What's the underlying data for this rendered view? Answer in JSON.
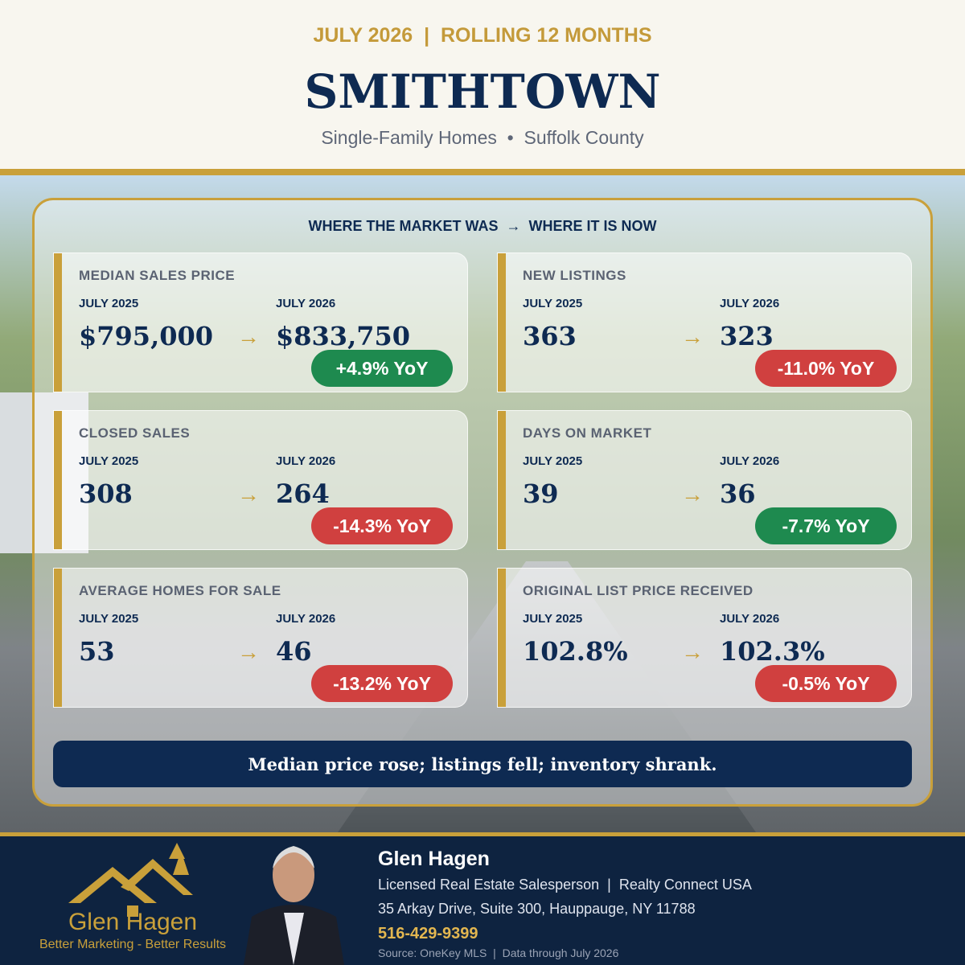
{
  "header": {
    "kicker": "JULY 2026  |  ROLLING 12 MONTHS",
    "title": "SMITHTOWN",
    "subtitle": "Single-Family Homes  •  Suffolk County"
  },
  "section_title": "WHERE THE MARKET WAS  →  WHERE IT IS NOW",
  "arrow": "→",
  "cards": [
    {
      "label": "MEDIAN SALES PRICE",
      "before_label": "JULY 2025",
      "after_label": "JULY 2026",
      "before": "$795,000",
      "after": "$833,750",
      "change": "+4.9% YoY",
      "badge_color": "#1e8a4f"
    },
    {
      "label": "NEW LISTINGS",
      "before_label": "JULY 2025",
      "after_label": "JULY 2026",
      "before": "363",
      "after": "323",
      "change": "-11.0% YoY",
      "badge_color": "#d0403f"
    },
    {
      "label": "CLOSED SALES",
      "before_label": "JULY 2025",
      "after_label": "JULY 2026",
      "before": "308",
      "after": "264",
      "change": "-14.3% YoY",
      "badge_color": "#d0403f"
    },
    {
      "label": "DAYS ON MARKET",
      "before_label": "JULY 2025",
      "after_label": "JULY 2026",
      "before": "39",
      "after": "36",
      "change": "-7.7% YoY",
      "badge_color": "#1e8a4f"
    },
    {
      "label": "AVERAGE HOMES FOR SALE",
      "before_label": "JULY 2025",
      "after_label": "JULY 2026",
      "before": "53",
      "after": "46",
      "change": "-13.2% YoY",
      "badge_color": "#d0403f"
    },
    {
      "label": "ORIGINAL LIST PRICE RECEIVED",
      "before_label": "JULY 2025",
      "after_label": "JULY 2026",
      "before": "102.8%",
      "after": "102.3%",
      "change": "-0.5% YoY",
      "badge_color": "#d0403f"
    }
  ],
  "summary": "Median price rose; listings fell; inventory shrank.",
  "footer": {
    "logo_name": "Glen Hagen",
    "logo_tagline": "Better Marketing - Better Results",
    "name": "Glen Hagen",
    "role": "Licensed Real Estate Salesperson  |  Realty Connect USA",
    "address": "35 Arkay Drive, Suite 300, Hauppauge, NY 11788",
    "phone": "516-429-9399",
    "source": "Source: OneKey MLS  |  Data through July 2026"
  }
}
